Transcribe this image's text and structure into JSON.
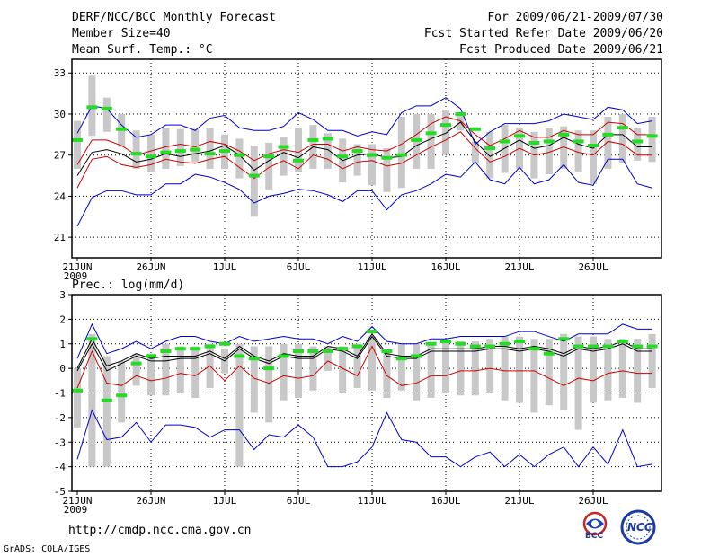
{
  "header": {
    "title": "DERF/NCC/BCC Monthly Forecast",
    "member_size": "Member Size=40",
    "variable": "Mean Surf. Temp.: °C",
    "period": "For 2009/06/21-2009/07/30",
    "started": "Fcst Started Refer Date 2009/06/20",
    "produced": "Fcst Produced Date 2009/06/21"
  },
  "footer": {
    "url": "http://cmdp.ncc.cma.gov.cn",
    "credit": "GrADS: COLA/IGES",
    "logo_left": "BCC",
    "logo_right": "NCC"
  },
  "colors": {
    "grid": "#000000",
    "blue": "#0000cc",
    "red": "#cc0000",
    "box": "#c8c8c8",
    "green": "#22dd22"
  },
  "chart_data": [
    {
      "type": "line",
      "title": "Mean Surf. Temp.: °C",
      "ylim": [
        19.5,
        34
      ],
      "yticks": [
        21,
        24,
        27,
        30,
        33
      ],
      "xlim": [
        0,
        40
      ],
      "xticks": [
        {
          "pos": 0,
          "label": "21JUN",
          "sub": "2009"
        },
        {
          "pos": 5,
          "label": "26JUN"
        },
        {
          "pos": 10,
          "label": "1JUL"
        },
        {
          "pos": 15,
          "label": "6JUL"
        },
        {
          "pos": 20,
          "label": "11JUL"
        },
        {
          "pos": 25,
          "label": "16JUL"
        },
        {
          "pos": 30,
          "label": "21JUL"
        },
        {
          "pos": 35,
          "label": "26JUL"
        }
      ],
      "series": [
        {
          "name": "max",
          "color": "blue",
          "values": [
            28.6,
            30.6,
            30.4,
            29.2,
            28.3,
            28.5,
            29.2,
            29.2,
            28.8,
            29.7,
            29.9,
            29.0,
            28.8,
            28.8,
            29.1,
            30.1,
            29.6,
            28.8,
            28.8,
            28.4,
            28.7,
            28.5,
            30.1,
            30.6,
            30.6,
            31.2,
            30.4,
            27.8,
            28.7,
            29.3,
            29.3,
            29.3,
            29.5,
            30.0,
            29.8,
            29.6,
            30.5,
            30.3,
            29.3,
            29.5
          ]
        },
        {
          "name": "upper",
          "color": "red",
          "values": [
            26.3,
            28.1,
            28.1,
            27.7,
            27.0,
            27.3,
            27.6,
            27.8,
            27.6,
            28.0,
            27.8,
            27.3,
            26.6,
            27.1,
            27.4,
            27.2,
            27.8,
            27.8,
            27.3,
            27.6,
            27.4,
            27.3,
            27.8,
            28.5,
            29.3,
            29.8,
            29.5,
            28.5,
            27.7,
            28.2,
            28.8,
            28.3,
            28.3,
            28.8,
            28.5,
            28.5,
            29.4,
            29.3,
            28.5,
            28.5
          ]
        },
        {
          "name": "mean",
          "color": "black",
          "values": [
            25.5,
            27.2,
            27.4,
            27.1,
            26.5,
            26.7,
            27.1,
            26.9,
            27.1,
            27.3,
            27.7,
            27.0,
            25.9,
            26.6,
            27.2,
            26.8,
            27.6,
            27.4,
            26.6,
            27.0,
            27.1,
            26.8,
            26.9,
            27.7,
            28.2,
            28.6,
            29.4,
            28.0,
            26.9,
            27.5,
            28.1,
            27.5,
            27.7,
            28.3,
            27.8,
            27.5,
            28.5,
            28.5,
            27.6,
            27.6
          ]
        },
        {
          "name": "lower",
          "color": "red",
          "values": [
            24.6,
            26.7,
            26.9,
            26.3,
            26.1,
            26.3,
            26.7,
            26.5,
            26.4,
            26.7,
            26.9,
            26.1,
            25.3,
            26.1,
            26.6,
            26.0,
            27.0,
            26.7,
            26.0,
            26.5,
            26.6,
            26.2,
            26.4,
            27.0,
            27.6,
            28.1,
            28.7,
            27.5,
            26.5,
            26.9,
            27.5,
            27.0,
            27.2,
            27.6,
            27.2,
            27.0,
            28.0,
            27.8,
            27.0,
            27.0
          ]
        },
        {
          "name": "min",
          "color": "blue",
          "values": [
            21.8,
            23.9,
            24.4,
            24.4,
            24.1,
            24.1,
            24.9,
            24.9,
            25.6,
            25.4,
            25.0,
            24.5,
            23.5,
            24.0,
            24.2,
            24.5,
            24.4,
            24.1,
            23.6,
            24.4,
            24.4,
            23.0,
            24.1,
            24.4,
            24.9,
            25.6,
            25.4,
            26.5,
            25.2,
            24.9,
            26.1,
            24.9,
            25.2,
            26.3,
            25.0,
            24.8,
            26.7,
            26.7,
            24.9,
            24.6
          ]
        }
      ],
      "boxes": {
        "top": [
          29.5,
          32.8,
          31.2,
          30.0,
          28.8,
          28.5,
          29.0,
          28.9,
          28.9,
          29.0,
          28.5,
          28.2,
          27.7,
          27.9,
          28.3,
          29.0,
          29.2,
          28.6,
          28.2,
          27.8,
          27.8,
          27.5,
          29.8,
          30.0,
          30.0,
          30.3,
          29.9,
          28.0,
          28.7,
          29.2,
          29.0,
          28.7,
          29.0,
          29.1,
          28.8,
          28.8,
          29.8,
          30.0,
          29.0,
          29.8
        ],
        "bottom": [
          26.0,
          28.4,
          28.7,
          27.6,
          26.0,
          25.8,
          26.0,
          26.2,
          26.5,
          26.0,
          26.0,
          25.3,
          22.5,
          24.5,
          25.5,
          25.8,
          26.0,
          26.0,
          25.0,
          25.5,
          24.8,
          24.3,
          24.6,
          26.0,
          26.0,
          27.0,
          28.8,
          26.4,
          25.3,
          25.7,
          26.0,
          25.3,
          25.6,
          26.0,
          25.8,
          24.9,
          26.0,
          26.4,
          26.6,
          26.5
        ],
        "median": [
          28.1,
          30.5,
          30.4,
          28.9,
          27.1,
          26.9,
          27.2,
          27.3,
          27.4,
          27.1,
          27.3,
          27.0,
          25.5,
          26.9,
          27.6,
          26.6,
          28.1,
          28.2,
          26.9,
          27.3,
          27.0,
          26.8,
          27.0,
          28.1,
          28.6,
          29.2,
          30.0,
          28.9,
          27.5,
          28.0,
          28.4,
          27.9,
          28.0,
          28.5,
          28.0,
          27.7,
          28.5,
          29.0,
          28.0,
          28.4
        ]
      }
    },
    {
      "type": "line",
      "title": "Prec.: log(mm/d)",
      "ylim": [
        -5,
        3
      ],
      "yticks": [
        -5,
        -4,
        -3,
        -2,
        -1,
        0,
        1,
        2,
        3
      ],
      "xlim": [
        0,
        40
      ],
      "xticks": [
        {
          "pos": 0,
          "label": "21JUN",
          "sub": "2009"
        },
        {
          "pos": 5,
          "label": "26JUN"
        },
        {
          "pos": 10,
          "label": "1JUL"
        },
        {
          "pos": 15,
          "label": "6JUL"
        },
        {
          "pos": 20,
          "label": "11JUL"
        },
        {
          "pos": 25,
          "label": "16JUL"
        },
        {
          "pos": 30,
          "label": "21JUL"
        },
        {
          "pos": 35,
          "label": "26JUL"
        }
      ],
      "series": [
        {
          "name": "max",
          "color": "blue",
          "values": [
            0.4,
            1.8,
            0.6,
            0.8,
            1.1,
            0.8,
            1.1,
            1.3,
            1.3,
            1.1,
            1.0,
            1.3,
            1.1,
            1.2,
            1.3,
            1.2,
            1.2,
            1.0,
            1.3,
            1.1,
            1.7,
            1.1,
            1.0,
            1.0,
            1.2,
            1.2,
            1.3,
            1.3,
            1.3,
            1.3,
            1.5,
            1.5,
            1.3,
            1.1,
            1.4,
            1.4,
            1.4,
            1.8,
            1.6,
            1.6
          ]
        },
        {
          "name": "upper",
          "color": "black",
          "values": [
            0.0,
            1.2,
            0.1,
            0.3,
            0.6,
            0.4,
            0.5,
            0.5,
            0.5,
            0.7,
            0.4,
            0.9,
            0.5,
            0.3,
            0.6,
            0.5,
            0.5,
            0.9,
            0.8,
            0.5,
            1.4,
            0.6,
            0.5,
            0.5,
            0.8,
            0.8,
            0.8,
            0.8,
            0.9,
            0.9,
            0.8,
            0.9,
            0.8,
            0.6,
            0.9,
            0.8,
            0.9,
            1.1,
            0.8,
            0.8
          ]
        },
        {
          "name": "mean",
          "color": "black",
          "values": [
            -0.1,
            1.0,
            -0.1,
            0.2,
            0.5,
            0.3,
            0.3,
            0.4,
            0.4,
            0.6,
            0.3,
            0.8,
            0.4,
            0.2,
            0.5,
            0.4,
            0.4,
            0.8,
            0.7,
            0.4,
            1.3,
            0.5,
            0.4,
            0.4,
            0.7,
            0.7,
            0.7,
            0.7,
            0.8,
            0.8,
            0.7,
            0.8,
            0.7,
            0.5,
            0.8,
            0.7,
            0.8,
            1.0,
            0.7,
            0.7
          ]
        },
        {
          "name": "lower",
          "color": "red",
          "values": [
            -0.8,
            0.7,
            -0.6,
            -0.7,
            -0.3,
            -0.5,
            -0.4,
            -0.2,
            -0.3,
            0.1,
            -0.5,
            0.1,
            -0.4,
            -0.6,
            -0.3,
            -0.4,
            -0.3,
            0.3,
            0.0,
            -0.3,
            0.9,
            -0.3,
            -0.7,
            -0.6,
            -0.3,
            -0.3,
            -0.1,
            -0.1,
            0.0,
            -0.1,
            -0.1,
            -0.1,
            -0.4,
            -0.7,
            -0.4,
            -0.5,
            -0.2,
            -0.1,
            -0.2,
            -0.2
          ]
        },
        {
          "name": "min",
          "color": "blue",
          "values": [
            -3.7,
            -1.7,
            -2.9,
            -2.8,
            -2.2,
            -3.0,
            -2.3,
            -2.3,
            -2.4,
            -2.8,
            -2.5,
            -2.5,
            -3.3,
            -2.7,
            -2.8,
            -2.3,
            -2.8,
            -4.0,
            -4.0,
            -3.8,
            -3.2,
            -1.8,
            -2.9,
            -3.0,
            -3.6,
            -3.6,
            -4.0,
            -3.6,
            -3.4,
            -4.0,
            -3.5,
            -4.0,
            -3.5,
            -3.2,
            -4.0,
            -3.2,
            -3.9,
            -2.5,
            -4.0,
            -3.9
          ]
        }
      ],
      "boxes": {
        "top": [
          0.0,
          1.4,
          0.5,
          0.3,
          0.6,
          0.6,
          1.0,
          0.9,
          0.9,
          1.0,
          0.8,
          1.0,
          0.9,
          0.9,
          1.0,
          1.0,
          0.9,
          0.9,
          0.9,
          1.0,
          1.3,
          0.8,
          1.0,
          1.0,
          1.0,
          1.1,
          1.1,
          1.1,
          1.2,
          1.3,
          1.3,
          1.2,
          1.2,
          1.4,
          1.3,
          1.3,
          1.2,
          1.2,
          1.2,
          1.4
        ],
        "bottom": [
          -2.4,
          -4.0,
          -4.0,
          -2.2,
          -0.7,
          -1.1,
          -1.1,
          -1.0,
          -1.2,
          -0.8,
          -0.2,
          -4.0,
          -1.8,
          -2.2,
          -1.3,
          -1.2,
          -0.9,
          -0.1,
          -1.0,
          -0.8,
          -0.9,
          -1.2,
          -0.9,
          -1.3,
          -1.2,
          -1.0,
          -1.1,
          -1.1,
          -1.0,
          -1.3,
          -1.4,
          -1.8,
          -1.5,
          -1.7,
          -2.5,
          -1.4,
          -1.3,
          -1.2,
          -1.4,
          -0.8
        ],
        "median": [
          -0.9,
          1.2,
          -1.3,
          -1.1,
          0.2,
          0.5,
          0.7,
          0.8,
          0.8,
          0.9,
          1.0,
          0.5,
          0.4,
          0.0,
          0.5,
          0.7,
          0.7,
          0.7,
          0.8,
          0.9,
          1.5,
          0.7,
          0.4,
          0.5,
          1.0,
          1.1,
          1.0,
          0.9,
          0.9,
          1.0,
          1.1,
          0.8,
          0.6,
          1.2,
          0.9,
          0.9,
          0.9,
          1.1,
          0.9,
          0.9
        ]
      }
    }
  ]
}
